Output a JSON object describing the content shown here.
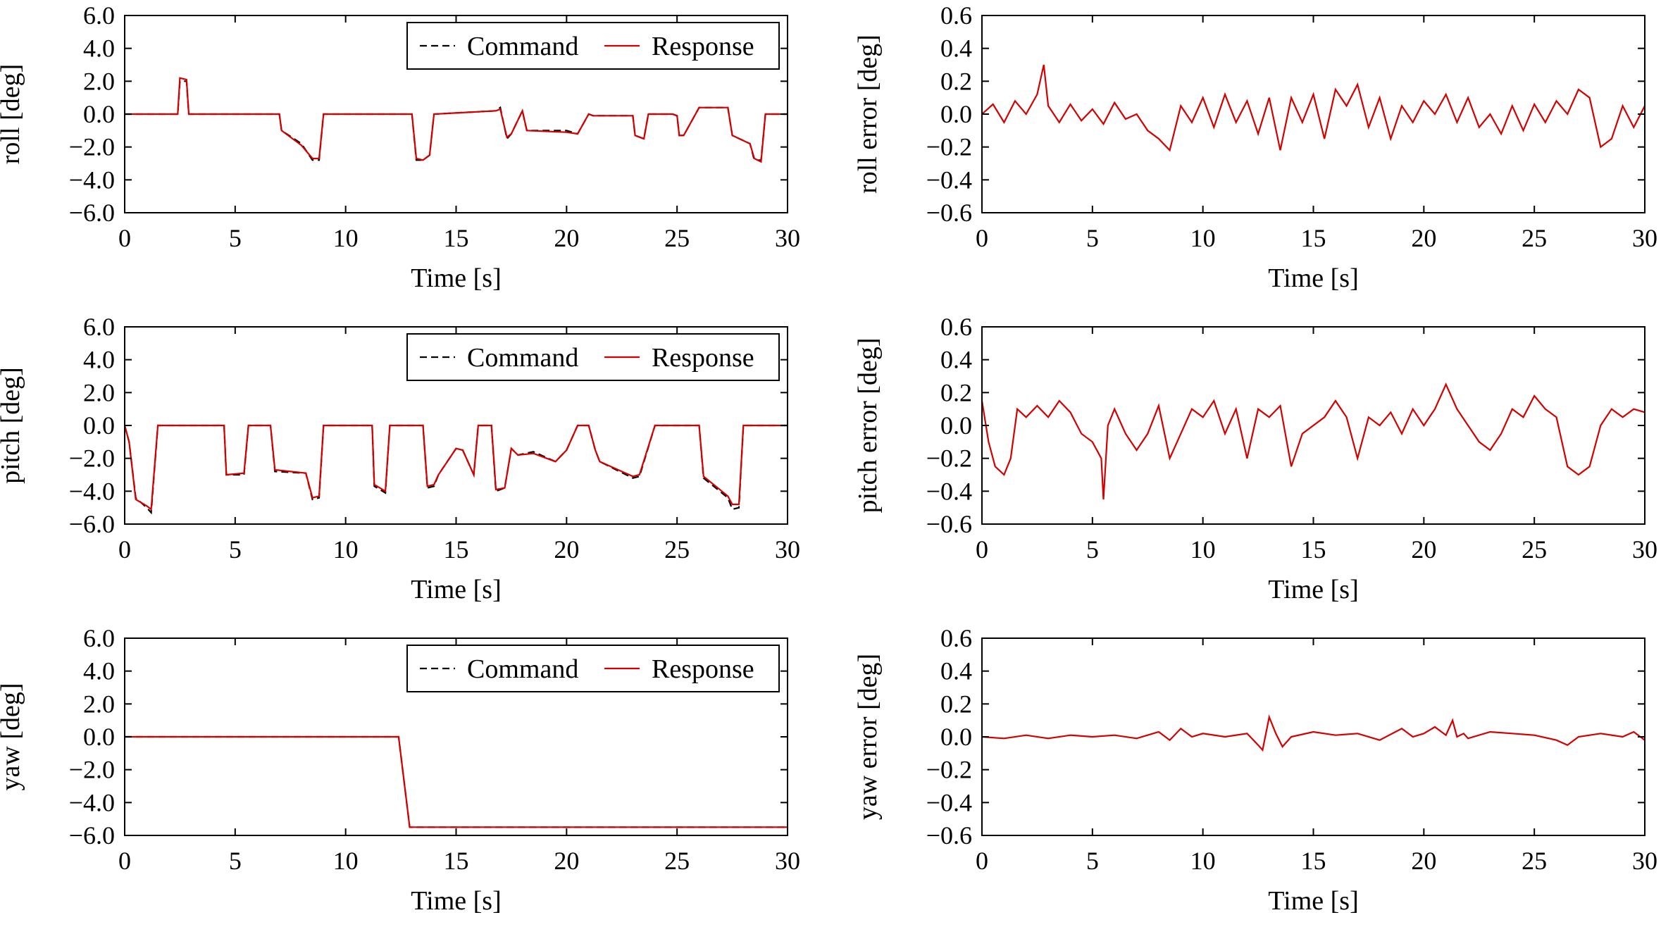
{
  "colors": {
    "command": "#000000",
    "response": "#d40000",
    "error": "#d40000",
    "axis": "#000000"
  },
  "chart_data": [
    {
      "type": "line",
      "id": "roll",
      "xlabel": "Time [s]",
      "ylabel": "roll [deg]",
      "xlim": [
        0,
        30
      ],
      "ylim": [
        -6,
        6
      ],
      "xticks": [
        "0",
        "5",
        "10",
        "15",
        "20",
        "25",
        "30"
      ],
      "yticks": [
        "−6.0",
        "−4.0",
        "−2.0",
        "0.0",
        "2.0",
        "4.0",
        "6.0"
      ],
      "legend": [
        "Command",
        "Response"
      ],
      "legend_position": "top-right",
      "series": [
        {
          "name": "Command",
          "style": "dashed",
          "x": [
            0,
            2.4,
            2.5,
            2.8,
            2.9,
            7.0,
            7.1,
            8.0,
            8.5,
            8.8,
            9.0,
            13.0,
            13.2,
            13.5,
            13.8,
            14.0,
            16.8,
            17.0,
            17.3,
            17.5,
            18.0,
            18.2,
            20.0,
            20.5,
            21.0,
            21.2,
            23.0,
            23.1,
            23.5,
            23.7,
            24.8,
            25.0,
            25.1,
            25.3,
            26.0,
            26.2,
            27.3,
            27.5,
            28.3,
            28.5,
            28.8,
            29.0,
            30.0
          ],
          "y": [
            0.0,
            0.0,
            2.0,
            2.0,
            0.0,
            0.0,
            -1.0,
            -1.8,
            -2.8,
            -2.8,
            0.0,
            0.0,
            -2.8,
            -2.8,
            -2.5,
            0.0,
            0.2,
            0.4,
            -1.5,
            -1.2,
            0.2,
            -1.0,
            -1.0,
            -1.2,
            0.0,
            -0.1,
            -0.1,
            -1.3,
            -1.5,
            0.0,
            0.0,
            -0.1,
            -1.3,
            -1.3,
            0.4,
            0.4,
            0.4,
            -1.3,
            -1.8,
            -2.8,
            -2.8,
            0.0,
            0.0
          ]
        },
        {
          "name": "Response",
          "style": "solid",
          "x": [
            0,
            2.4,
            2.5,
            2.8,
            2.9,
            7.0,
            7.1,
            8.0,
            8.5,
            8.8,
            9.0,
            13.0,
            13.2,
            13.5,
            13.8,
            14.0,
            16.8,
            17.0,
            17.3,
            17.5,
            18.0,
            18.2,
            20.0,
            20.5,
            21.0,
            21.2,
            23.0,
            23.1,
            23.5,
            23.7,
            24.8,
            25.0,
            25.1,
            25.3,
            26.0,
            26.2,
            27.3,
            27.5,
            28.3,
            28.5,
            28.8,
            29.0,
            30.0
          ],
          "y": [
            0.0,
            0.0,
            2.2,
            2.1,
            0.0,
            0.0,
            -1.0,
            -1.9,
            -2.7,
            -2.7,
            0.0,
            0.0,
            -2.7,
            -2.8,
            -2.5,
            0.0,
            0.2,
            0.3,
            -1.4,
            -1.2,
            0.2,
            -1.0,
            -1.1,
            -1.2,
            0.0,
            -0.1,
            -0.1,
            -1.3,
            -1.5,
            0.0,
            0.0,
            -0.1,
            -1.3,
            -1.3,
            0.4,
            0.4,
            0.4,
            -1.3,
            -1.8,
            -2.7,
            -2.9,
            0.0,
            0.0
          ]
        }
      ]
    },
    {
      "type": "line",
      "id": "pitch",
      "xlabel": "Time [s]",
      "ylabel": "pitch [deg]",
      "xlim": [
        0,
        30
      ],
      "ylim": [
        -6,
        6
      ],
      "xticks": [
        "0",
        "5",
        "10",
        "15",
        "20",
        "25",
        "30"
      ],
      "yticks": [
        "−6.0",
        "−4.0",
        "−2.0",
        "0.0",
        "2.0",
        "4.0",
        "6.0"
      ],
      "legend": [
        "Command",
        "Response"
      ],
      "legend_position": "top-right",
      "series": [
        {
          "name": "Command",
          "style": "dashed",
          "x": [
            0,
            0.2,
            0.5,
            1.0,
            1.2,
            1.5,
            4.5,
            4.6,
            5.4,
            5.6,
            6.6,
            6.8,
            8.2,
            8.5,
            8.8,
            9.0,
            11.2,
            11.3,
            11.8,
            12.0,
            13.5,
            13.7,
            14.0,
            14.2,
            15.0,
            15.3,
            15.8,
            16.0,
            16.6,
            16.8,
            17.2,
            17.5,
            17.8,
            18.5,
            19.5,
            20.0,
            20.5,
            21.0,
            21.3,
            21.5,
            23.0,
            23.3,
            24.0,
            26.0,
            26.2,
            27.3,
            27.5,
            27.8,
            28.0,
            30.0
          ],
          "y": [
            0.0,
            -1.0,
            -4.4,
            -5.0,
            -5.3,
            0.0,
            0.0,
            -3.0,
            -3.0,
            0.0,
            0.0,
            -2.8,
            -2.9,
            -4.5,
            -4.4,
            0.0,
            0.0,
            -3.7,
            -4.1,
            0.0,
            0.0,
            -3.8,
            -3.7,
            -3.0,
            -1.4,
            -1.5,
            -3.0,
            0.0,
            0.0,
            -4.0,
            -3.8,
            -1.4,
            -1.8,
            -1.6,
            -2.2,
            -1.5,
            0.0,
            0.0,
            -1.5,
            -2.2,
            -3.2,
            -3.1,
            0.0,
            0.0,
            -3.2,
            -4.4,
            -5.1,
            -5.0,
            0.0,
            0.0
          ]
        },
        {
          "name": "Response",
          "style": "solid",
          "x": [
            0,
            0.2,
            0.5,
            1.0,
            1.2,
            1.5,
            4.5,
            4.6,
            5.4,
            5.6,
            6.6,
            6.8,
            8.2,
            8.5,
            8.8,
            9.0,
            11.2,
            11.3,
            11.8,
            12.0,
            13.5,
            13.7,
            14.0,
            14.2,
            15.0,
            15.3,
            15.8,
            16.0,
            16.6,
            16.8,
            17.2,
            17.5,
            17.8,
            18.5,
            19.5,
            20.0,
            20.5,
            21.0,
            21.3,
            21.5,
            23.0,
            23.3,
            24.0,
            26.0,
            26.2,
            27.3,
            27.5,
            27.8,
            28.0,
            30.0
          ],
          "y": [
            0.0,
            -1.0,
            -4.5,
            -4.9,
            -5.1,
            0.0,
            0.0,
            -3.0,
            -2.9,
            0.0,
            0.0,
            -2.7,
            -2.9,
            -4.4,
            -4.3,
            0.0,
            0.0,
            -3.6,
            -4.0,
            0.0,
            0.0,
            -3.7,
            -3.6,
            -3.0,
            -1.4,
            -1.5,
            -3.0,
            0.0,
            0.0,
            -3.9,
            -3.8,
            -1.4,
            -1.8,
            -1.7,
            -2.2,
            -1.5,
            0.0,
            0.0,
            -1.5,
            -2.2,
            -3.1,
            -3.0,
            0.0,
            0.0,
            -3.1,
            -4.3,
            -4.8,
            -4.8,
            0.0,
            0.0
          ]
        }
      ]
    },
    {
      "type": "line",
      "id": "yaw",
      "xlabel": "Time [s]",
      "ylabel": "yaw [deg]",
      "xlim": [
        0,
        30
      ],
      "ylim": [
        -6,
        6
      ],
      "xticks": [
        "0",
        "5",
        "10",
        "15",
        "20",
        "25",
        "30"
      ],
      "yticks": [
        "−6.0",
        "−4.0",
        "−2.0",
        "0.0",
        "2.0",
        "4.0",
        "6.0"
      ],
      "legend": [
        "Command",
        "Response"
      ],
      "legend_position": "top-right",
      "series": [
        {
          "name": "Command",
          "style": "dashed",
          "x": [
            0,
            12.4,
            12.9,
            30.0
          ],
          "y": [
            0.0,
            0.0,
            -5.5,
            -5.5
          ]
        },
        {
          "name": "Response",
          "style": "solid",
          "x": [
            0,
            12.4,
            12.9,
            30.0
          ],
          "y": [
            0.0,
            0.0,
            -5.5,
            -5.5
          ]
        }
      ]
    },
    {
      "type": "line",
      "id": "roll-error",
      "xlabel": "Time [s]",
      "ylabel": "roll error [deg]",
      "xlim": [
        0,
        30
      ],
      "ylim": [
        -0.6,
        0.6
      ],
      "xticks": [
        "0",
        "5",
        "10",
        "15",
        "20",
        "25",
        "30"
      ],
      "yticks": [
        "−0.6",
        "−0.4",
        "−0.2",
        "0.0",
        "0.2",
        "0.4",
        "0.6"
      ],
      "series": [
        {
          "name": "",
          "style": "solid",
          "x": [
            0,
            0.5,
            1.0,
            1.5,
            2.0,
            2.5,
            2.8,
            3.0,
            3.5,
            4.0,
            4.5,
            5.0,
            5.5,
            6.0,
            6.5,
            7.0,
            7.5,
            8.0,
            8.5,
            9.0,
            9.5,
            10.0,
            10.5,
            11.0,
            11.5,
            12.0,
            12.5,
            13.0,
            13.5,
            14.0,
            14.5,
            15.0,
            15.5,
            16.0,
            16.5,
            17.0,
            17.5,
            18.0,
            18.5,
            19.0,
            19.5,
            20.0,
            20.5,
            21.0,
            21.5,
            22.0,
            22.5,
            23.0,
            23.5,
            24.0,
            24.5,
            25.0,
            25.5,
            26.0,
            26.5,
            27.0,
            27.5,
            28.0,
            28.5,
            29.0,
            29.5,
            30.0
          ],
          "y": [
            0.0,
            0.06,
            -0.05,
            0.08,
            0.0,
            0.12,
            0.3,
            0.05,
            -0.05,
            0.06,
            -0.04,
            0.03,
            -0.06,
            0.07,
            -0.03,
            0.0,
            -0.1,
            -0.15,
            -0.22,
            0.05,
            -0.05,
            0.1,
            -0.08,
            0.12,
            -0.05,
            0.08,
            -0.12,
            0.1,
            -0.22,
            0.1,
            -0.05,
            0.12,
            -0.15,
            0.15,
            0.05,
            0.18,
            -0.08,
            0.1,
            -0.15,
            0.05,
            -0.05,
            0.08,
            0.0,
            0.12,
            -0.05,
            0.1,
            -0.08,
            0.0,
            -0.12,
            0.05,
            -0.1,
            0.06,
            -0.05,
            0.08,
            0.0,
            0.15,
            0.1,
            -0.2,
            -0.15,
            0.05,
            -0.08,
            0.05
          ]
        }
      ]
    },
    {
      "type": "line",
      "id": "pitch-error",
      "xlabel": "Time [s]",
      "ylabel": "pitch error [deg]",
      "xlim": [
        0,
        30
      ],
      "ylim": [
        -0.6,
        0.6
      ],
      "xticks": [
        "0",
        "5",
        "10",
        "15",
        "20",
        "25",
        "30"
      ],
      "yticks": [
        "−0.6",
        "−0.4",
        "−0.2",
        "0.0",
        "0.2",
        "0.4",
        "0.6"
      ],
      "series": [
        {
          "name": "",
          "style": "solid",
          "x": [
            0,
            0.3,
            0.6,
            1.0,
            1.3,
            1.6,
            2.0,
            2.5,
            3.0,
            3.5,
            4.0,
            4.5,
            5.0,
            5.4,
            5.5,
            5.7,
            6.0,
            6.5,
            7.0,
            7.5,
            8.0,
            8.5,
            9.0,
            9.5,
            10.0,
            10.5,
            11.0,
            11.5,
            12.0,
            12.5,
            13.0,
            13.5,
            14.0,
            14.5,
            15.0,
            15.5,
            16.0,
            16.5,
            17.0,
            17.5,
            18.0,
            18.5,
            19.0,
            19.5,
            20.0,
            20.5,
            21.0,
            21.5,
            22.0,
            22.5,
            23.0,
            23.5,
            24.0,
            24.5,
            25.0,
            25.5,
            26.0,
            26.5,
            27.0,
            27.5,
            28.0,
            28.5,
            29.0,
            29.5,
            30.0
          ],
          "y": [
            0.15,
            -0.1,
            -0.25,
            -0.3,
            -0.2,
            0.1,
            0.05,
            0.12,
            0.05,
            0.15,
            0.08,
            -0.05,
            -0.1,
            -0.2,
            -0.45,
            0.0,
            0.1,
            -0.05,
            -0.15,
            -0.05,
            0.12,
            -0.2,
            -0.05,
            0.1,
            0.05,
            0.15,
            -0.05,
            0.1,
            -0.2,
            0.1,
            0.05,
            0.12,
            -0.25,
            -0.05,
            0.0,
            0.05,
            0.15,
            0.05,
            -0.2,
            0.05,
            0.0,
            0.08,
            -0.05,
            0.1,
            0.0,
            0.1,
            0.25,
            0.1,
            0.0,
            -0.1,
            -0.15,
            -0.05,
            0.1,
            0.05,
            0.18,
            0.1,
            0.05,
            -0.25,
            -0.3,
            -0.25,
            0.0,
            0.1,
            0.05,
            0.1,
            0.08
          ]
        }
      ]
    },
    {
      "type": "line",
      "id": "yaw-error",
      "xlabel": "Time [s]",
      "ylabel": "yaw error [deg]",
      "xlim": [
        0,
        30
      ],
      "ylim": [
        -0.6,
        0.6
      ],
      "xticks": [
        "0",
        "5",
        "10",
        "15",
        "20",
        "25",
        "30"
      ],
      "yticks": [
        "−0.6",
        "−0.4",
        "−0.2",
        "0.0",
        "0.2",
        "0.4",
        "0.6"
      ],
      "series": [
        {
          "name": "",
          "style": "solid",
          "x": [
            0,
            1.0,
            2.0,
            3.0,
            4.0,
            5.0,
            6.0,
            7.0,
            8.0,
            8.5,
            9.0,
            9.5,
            10.0,
            11.0,
            12.0,
            12.5,
            12.7,
            13.0,
            13.3,
            13.6,
            14.0,
            15.0,
            16.0,
            17.0,
            18.0,
            19.0,
            19.5,
            20.0,
            20.5,
            21.0,
            21.3,
            21.5,
            21.8,
            22.0,
            23.0,
            24.0,
            25.0,
            26.0,
            26.5,
            27.0,
            28.0,
            29.0,
            29.5,
            30.0
          ],
          "y": [
            0.0,
            -0.01,
            0.01,
            -0.01,
            0.01,
            0.0,
            0.01,
            -0.01,
            0.03,
            -0.02,
            0.05,
            0.0,
            0.02,
            0.0,
            0.02,
            -0.05,
            -0.08,
            0.12,
            0.02,
            -0.06,
            0.0,
            0.03,
            0.01,
            0.02,
            -0.02,
            0.05,
            0.0,
            0.02,
            0.06,
            0.01,
            0.1,
            0.0,
            0.02,
            -0.01,
            0.03,
            0.02,
            0.01,
            -0.02,
            -0.05,
            0.0,
            0.02,
            0.0,
            0.03,
            -0.02
          ]
        }
      ]
    }
  ]
}
